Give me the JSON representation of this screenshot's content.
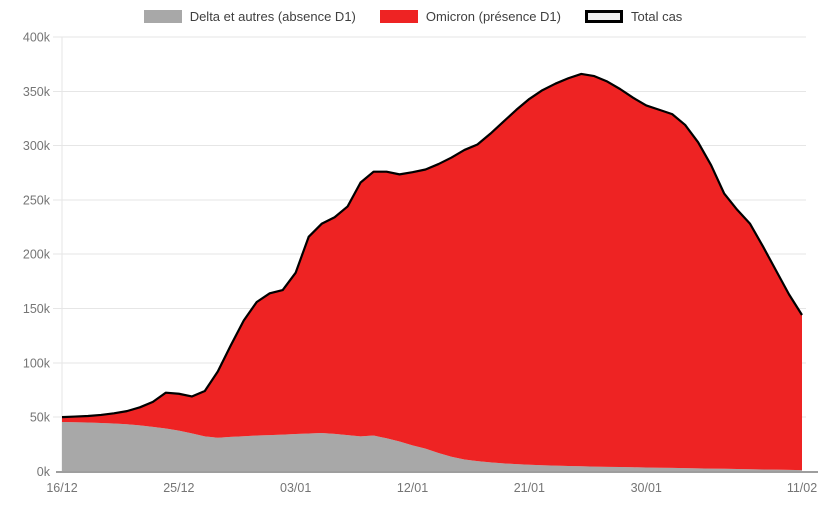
{
  "legend": {
    "items": [
      {
        "label": "Delta et autres (absence D1)",
        "color": "#a8a8a8",
        "border_color": null
      },
      {
        "label": "Omicron (présence D1)",
        "color": "#ee2323",
        "border_color": null
      },
      {
        "label": "Total cas",
        "color": "#eeeeee",
        "border_color": "#000000"
      }
    ]
  },
  "axes": {
    "y_ticks": [
      "0k",
      "50k",
      "100k",
      "150k",
      "200k",
      "250k",
      "300k",
      "350k",
      "400k"
    ],
    "x_ticks": [
      "16/12",
      "25/12",
      "03/01",
      "12/01",
      "21/01",
      "30/01",
      "11/02"
    ]
  },
  "colors": {
    "grid": "#e6e6e6",
    "axis_line": "#9e9e9e",
    "tick_text": "#757575",
    "total_line": "#000000",
    "background": "#ffffff"
  },
  "chart_data": {
    "type": "area",
    "stacked": true,
    "values_unit": "thousands",
    "ylim": [
      0,
      400
    ],
    "grid": true,
    "legend_position": "top",
    "x": [
      "16/12",
      "17/12",
      "18/12",
      "19/12",
      "20/12",
      "21/12",
      "22/12",
      "23/12",
      "24/12",
      "25/12",
      "26/12",
      "27/12",
      "28/12",
      "29/12",
      "30/12",
      "31/12",
      "01/01",
      "02/01",
      "03/01",
      "04/01",
      "05/01",
      "06/01",
      "07/01",
      "08/01",
      "09/01",
      "10/01",
      "11/01",
      "12/01",
      "13/01",
      "14/01",
      "15/01",
      "16/01",
      "17/01",
      "18/01",
      "19/01",
      "20/01",
      "21/01",
      "22/01",
      "23/01",
      "24/01",
      "25/01",
      "26/01",
      "27/01",
      "28/01",
      "29/01",
      "30/01",
      "31/01",
      "01/02",
      "02/02",
      "03/02",
      "04/02",
      "05/02",
      "06/02",
      "07/02",
      "08/02",
      "09/02",
      "10/02",
      "11/02"
    ],
    "x_tick_labels": [
      "16/12",
      "25/12",
      "03/01",
      "12/01",
      "21/01",
      "30/01",
      "11/02"
    ],
    "x_tick_indices": [
      0,
      9,
      18,
      27,
      36,
      45,
      57
    ],
    "series": [
      {
        "name": "Delta et autres (absence D1)",
        "role": "area",
        "color": "#a8a8a8",
        "values": [
          45.5,
          45.3,
          45,
          44.6,
          44.1,
          43.4,
          42.4,
          41,
          39.5,
          37.5,
          35,
          32.2,
          31,
          31.8,
          32.4,
          33,
          33.4,
          33.9,
          34.4,
          34.9,
          35.4,
          34.5,
          33.4,
          32.2,
          33,
          30.5,
          27.5,
          24,
          21,
          17,
          13.5,
          11,
          9.5,
          8.3,
          7.4,
          6.7,
          6.1,
          5.7,
          5.3,
          5,
          4.7,
          4.4,
          4.2,
          4,
          3.8,
          3.6,
          3.4,
          3.2,
          3,
          2.8,
          2.6,
          2.4,
          2.2,
          2,
          1.8,
          1.6,
          1.4,
          1.2
        ]
      },
      {
        "name": "Omicron (présence D1)",
        "role": "area",
        "color": "#ee2323",
        "values": [
          4.5,
          5.2,
          6,
          7.4,
          9.4,
          12.1,
          16.6,
          23,
          33,
          34,
          34,
          41.8,
          61,
          84.2,
          106.6,
          123,
          130.6,
          133.1,
          148.6,
          181.1,
          192.6,
          199.5,
          210.6,
          233.8,
          243,
          245.5,
          246,
          251.5,
          257,
          266,
          275.5,
          285,
          291.5,
          302.7,
          314.6,
          326.3,
          336.9,
          345.3,
          351.7,
          357,
          361.3,
          359.6,
          354.8,
          348,
          340.2,
          333.4,
          329.6,
          325.8,
          316,
          300.2,
          279.4,
          253.6,
          238.8,
          226,
          205.2,
          183.4,
          161.6,
          142.8
        ]
      },
      {
        "name": "Total cas",
        "role": "line",
        "color": "#000000",
        "values": [
          50,
          50.5,
          51,
          52,
          53.5,
          55.5,
          59,
          64,
          72.5,
          71.5,
          69,
          74,
          92,
          116,
          139,
          156,
          164,
          167,
          183,
          216,
          228,
          234,
          244,
          266,
          276,
          276,
          273.5,
          275.5,
          278,
          283,
          289,
          296,
          301,
          311,
          322,
          333,
          343,
          351,
          357,
          362,
          366,
          364,
          359,
          352,
          344,
          337,
          333,
          329,
          319,
          303,
          282,
          256,
          241,
          228,
          207,
          185,
          163,
          144
        ]
      }
    ]
  }
}
